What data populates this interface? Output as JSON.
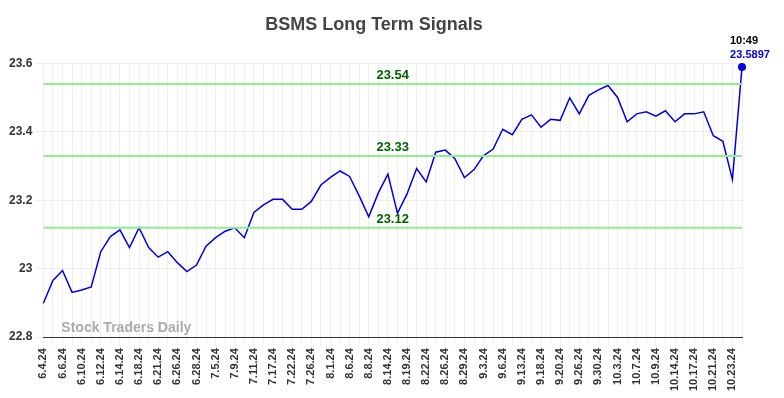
{
  "chart_data": {
    "type": "line",
    "title": "BSMS Long Term Signals",
    "watermark": "Stock Traders Daily",
    "categories": [
      "6.4.24",
      null,
      "6.6.24",
      null,
      "6.10.24",
      null,
      "6.12.24",
      null,
      "6.14.24",
      null,
      "6.18.24",
      null,
      "6.21.24",
      null,
      "6.26.24",
      null,
      "6.28.24",
      null,
      "7.5.24",
      null,
      "7.9.24",
      null,
      "7.11.24",
      null,
      "7.17.24",
      null,
      "7.22.24",
      null,
      "7.26.24",
      null,
      "8.1.24",
      null,
      "8.6.24",
      null,
      "8.8.24",
      null,
      "8.14.24",
      null,
      "8.19.24",
      null,
      "8.22.24",
      null,
      "8.26.24",
      null,
      "8.29.24",
      null,
      "9.3.24",
      null,
      "9.6.24",
      null,
      "9.13.24",
      null,
      "9.18.24",
      null,
      "9.20.24",
      null,
      "9.26.24",
      null,
      "9.30.24",
      null,
      "10.3.24",
      null,
      "10.7.24",
      null,
      "10.9.24",
      null,
      "10.14.24",
      null,
      "10.17.24",
      null,
      "10.21.24",
      null,
      "10.23.24",
      null
    ],
    "values": [
      22.899,
      22.966,
      22.995,
      22.931,
      22.938,
      22.947,
      23.05,
      23.094,
      23.114,
      23.062,
      23.12,
      23.062,
      23.034,
      23.05,
      23.018,
      22.992,
      23.011,
      23.066,
      23.091,
      23.11,
      23.12,
      23.091,
      23.165,
      23.187,
      23.203,
      23.203,
      23.174,
      23.174,
      23.197,
      23.245,
      23.267,
      23.286,
      23.27,
      23.213,
      23.152,
      23.222,
      23.277,
      23.162,
      23.219,
      23.293,
      23.254,
      23.341,
      23.347,
      23.322,
      23.267,
      23.29,
      23.331,
      23.35,
      23.408,
      23.392,
      23.437,
      23.45,
      23.414,
      23.437,
      23.434,
      23.5,
      23.453,
      23.507,
      23.523,
      23.536,
      23.501,
      23.43,
      23.453,
      23.459,
      23.446,
      23.462,
      23.43,
      23.453,
      23.453,
      23.459,
      23.389,
      23.373,
      23.261,
      23.5897
    ],
    "color": "#0000dd",
    "levels": [
      23.54,
      23.33,
      23.12
    ],
    "last_time": "10:49",
    "ylim": [
      22.8,
      23.6
    ],
    "yticks": [
      22.8,
      23,
      23.2,
      23.4,
      23.6
    ],
    "grid": true
  }
}
